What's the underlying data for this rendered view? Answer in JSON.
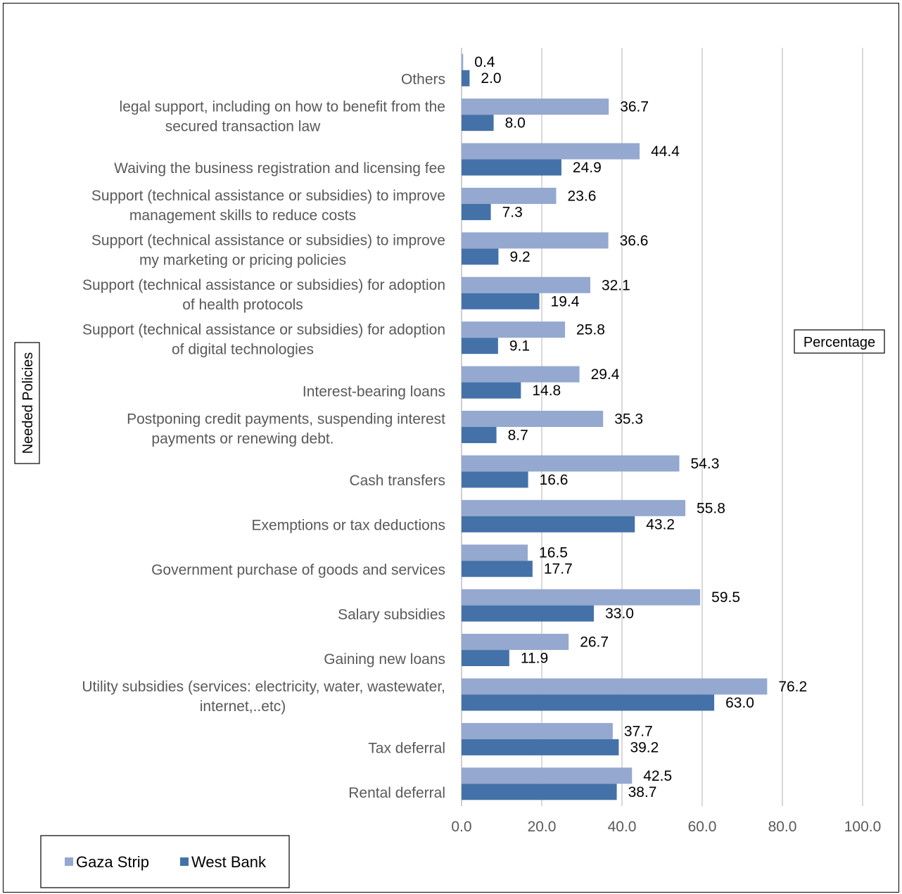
{
  "chart_data": {
    "type": "bar",
    "orientation": "horizontal",
    "xlabel": "Percentage",
    "ylabel": "Needed Policies",
    "xlim": [
      0,
      100
    ],
    "xticks": [
      "0.0",
      "20.0",
      "40.0",
      "60.0",
      "80.0",
      "100.0"
    ],
    "grid": true,
    "legend_position": "bottom-left",
    "categories": [
      [
        "Others"
      ],
      [
        "legal support, including on how to benefit from the",
        "secured transaction law"
      ],
      [
        "Waiving the business registration and licensing fee"
      ],
      [
        "Support (technical assistance or subsidies) to improve",
        "management skills to reduce costs"
      ],
      [
        "Support (technical assistance or subsidies) to improve",
        "my marketing or pricing  policies"
      ],
      [
        "Support (technical assistance or subsidies) for adoption",
        "of health protocols"
      ],
      [
        "Support (technical assistance or subsidies) for adoption",
        "of digital technologies"
      ],
      [
        "Interest-bearing loans"
      ],
      [
        "Postponing credit payments, suspending interest",
        "payments or renewing debt."
      ],
      [
        "Cash transfers"
      ],
      [
        "Exemptions or tax deductions"
      ],
      [
        "Government purchase of goods and services"
      ],
      [
        "Salary subsidies"
      ],
      [
        "Gaining new loans"
      ],
      [
        "Utility subsidies (services: electricity, water, wastewater,",
        "internet,..etc)"
      ],
      [
        "Tax deferral"
      ],
      [
        "Rental deferral"
      ]
    ],
    "series": [
      {
        "name": "Gaza Strip",
        "color": "#94a8d0",
        "values": [
          0.4,
          36.7,
          44.4,
          23.6,
          36.6,
          32.1,
          25.8,
          29.4,
          35.3,
          54.3,
          55.8,
          16.5,
          59.5,
          26.7,
          76.2,
          37.7,
          42.5
        ],
        "labels": [
          "0.4",
          "36.7",
          "44.4",
          "23.6",
          "36.6",
          "32.1",
          "25.8",
          "29.4",
          "35.3",
          "54.3",
          "55.8",
          "16.5",
          "59.5",
          "26.7",
          "76.2",
          "37.7",
          "42.5"
        ]
      },
      {
        "name": "West Bank",
        "color": "#4472a8",
        "values": [
          2.0,
          8.0,
          24.9,
          7.3,
          9.2,
          19.4,
          9.1,
          14.8,
          8.7,
          16.6,
          43.2,
          17.7,
          33.0,
          11.9,
          63.0,
          39.2,
          38.7
        ],
        "labels": [
          "2.0",
          "8.0",
          "24.9",
          "7.3",
          "9.2",
          "19.4",
          "9.1",
          "14.8",
          "8.7",
          "16.6",
          "43.2",
          "17.7",
          "33.0",
          "11.9",
          "63.0",
          "39.2",
          "38.7"
        ]
      }
    ],
    "colors": {
      "gridline": "#d9d9d9",
      "axis": "#bfbfbf"
    }
  }
}
